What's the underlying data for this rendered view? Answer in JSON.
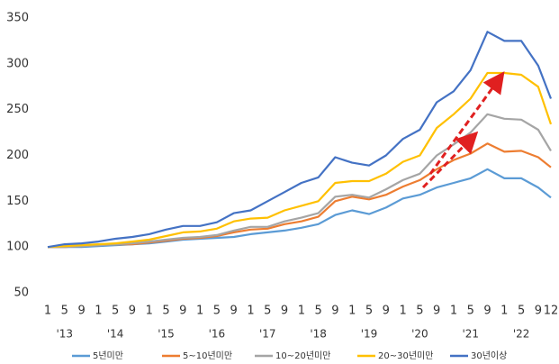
{
  "chart_data": {
    "type": "line",
    "categories": [
      "1",
      "5",
      "9",
      "1",
      "5",
      "9",
      "1",
      "5",
      "9",
      "1",
      "5",
      "9",
      "1",
      "5",
      "9",
      "1",
      "5",
      "9",
      "1",
      "5",
      "9",
      "1",
      "5",
      "9",
      "1",
      "5",
      "9",
      "1",
      "5",
      "9",
      "12"
    ],
    "years": [
      "'13",
      "'14",
      "'15",
      "'16",
      "'17",
      "'18",
      "'19",
      "'20",
      "'21",
      "'22"
    ],
    "ylim": [
      50,
      350
    ],
    "yticks": [
      50,
      100,
      150,
      200,
      250,
      300,
      350
    ],
    "grid": false,
    "legend": "bottom",
    "series": [
      {
        "name": "5년미만",
        "color": "#5b9bd5",
        "values": [
          100,
          100,
          100,
          101,
          102,
          103,
          104,
          106,
          108,
          109,
          110,
          111,
          114,
          116,
          118,
          121,
          125,
          135,
          140,
          136,
          143,
          153,
          157,
          165,
          170,
          175,
          185,
          175,
          175,
          165,
          154
        ]
      },
      {
        "name": "5~10년미만",
        "color": "#ed7d31",
        "values": [
          100,
          100,
          101,
          102,
          103,
          103,
          105,
          107,
          109,
          110,
          112,
          116,
          119,
          120,
          125,
          128,
          133,
          150,
          155,
          152,
          157,
          166,
          173,
          185,
          195,
          202,
          213,
          204,
          205,
          198,
          187
        ]
      },
      {
        "name": "10~20년미만",
        "color": "#a5a5a5",
        "values": [
          100,
          100,
          101,
          102,
          103,
          104,
          106,
          108,
          110,
          111,
          113,
          118,
          122,
          122,
          128,
          132,
          137,
          155,
          157,
          154,
          163,
          173,
          180,
          200,
          212,
          225,
          245,
          240,
          239,
          228,
          205
        ]
      },
      {
        "name": "20~30년미만",
        "color": "#ffc000",
        "values": [
          100,
          101,
          102,
          103,
          104,
          106,
          108,
          112,
          116,
          117,
          120,
          128,
          131,
          132,
          140,
          145,
          150,
          170,
          172,
          172,
          180,
          193,
          200,
          230,
          245,
          262,
          290,
          290,
          288,
          275,
          234
        ]
      },
      {
        "name": "30년이상",
        "color": "#4472c4",
        "values": [
          100,
          103,
          104,
          106,
          109,
          111,
          114,
          119,
          123,
          123,
          127,
          137,
          140,
          150,
          160,
          170,
          176,
          198,
          192,
          189,
          200,
          218,
          228,
          258,
          270,
          293,
          335,
          325,
          325,
          298,
          262
        ]
      }
    ]
  }
}
